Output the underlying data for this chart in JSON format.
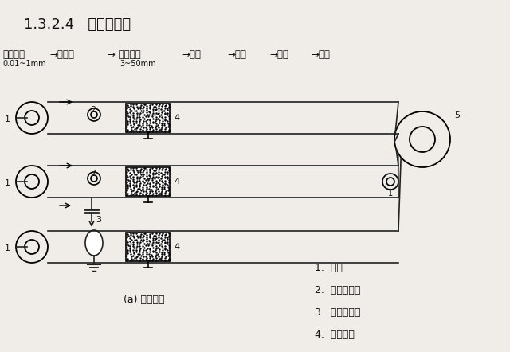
{
  "title": "1.3.2.4   静电吸附法",
  "flow_labels": [
    "塑料薄膜",
    "→带静电",
    "→ 短切玻纤",
    "→层合",
    "→热压",
    "→冷却",
    "→片材"
  ],
  "flow_sub1": "0.01~1mm",
  "flow_sub2": "3~50mm",
  "legend_items": [
    "1.  玻纤",
    "2.  静电摩擦辊",
    "3.  静电发生器",
    "4.  中长玻纤"
  ],
  "caption": "(a) 静电吸附",
  "bg_color": "#f0ede8",
  "line_color": "#222222",
  "text_color": "#111111"
}
